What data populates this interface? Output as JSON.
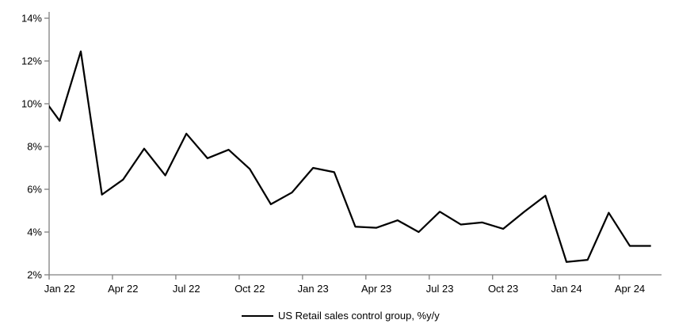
{
  "chart_data": {
    "type": "line",
    "title": "",
    "legend": "US Retail sales control group, %y/y",
    "series": [
      {
        "name": "US Retail sales control group, %y/y",
        "values": [
          10.55,
          9.2,
          12.45,
          5.75,
          6.45,
          7.9,
          6.65,
          8.6,
          7.45,
          7.85,
          6.95,
          5.3,
          5.85,
          7.0,
          6.8,
          4.25,
          4.2,
          4.55,
          4.0,
          4.95,
          4.35,
          4.45,
          4.15,
          4.95,
          5.7,
          2.6,
          2.7,
          4.9,
          3.35,
          3.35
        ]
      }
    ],
    "x": [
      "Dec 21",
      "Jan 22",
      "Feb 22",
      "Mar 22",
      "Apr 22",
      "May 22",
      "Jun 22",
      "Jul 22",
      "Aug 22",
      "Sep 22",
      "Oct 22",
      "Nov 22",
      "Dec 22",
      "Jan 23",
      "Feb 23",
      "Mar 23",
      "Apr 23",
      "May 23",
      "Jun 23",
      "Jul 23",
      "Aug 23",
      "Sep 23",
      "Oct 23",
      "Nov 23",
      "Dec 23",
      "Jan 24",
      "Feb 24",
      "Mar 24",
      "Apr 24",
      "May 24"
    ],
    "x_tick_labels": [
      "Jan 22",
      "Apr 22",
      "Jul 22",
      "Oct 22",
      "Jan 23",
      "Apr 23",
      "Jul 23",
      "Oct 23",
      "Jan 24",
      "Apr 24"
    ],
    "x_tick_every_n_months": 3,
    "y_tick_labels": [
      "2%",
      "4%",
      "6%",
      "8%",
      "10%",
      "12%",
      "14%"
    ],
    "ylim": [
      2,
      14
    ],
    "unit": "%",
    "grid": "off",
    "legend_position": "bottom-center",
    "line_color": "#000000",
    "axis_color": "#808080",
    "text_color": "#000000",
    "background_color": "#ffffff"
  }
}
